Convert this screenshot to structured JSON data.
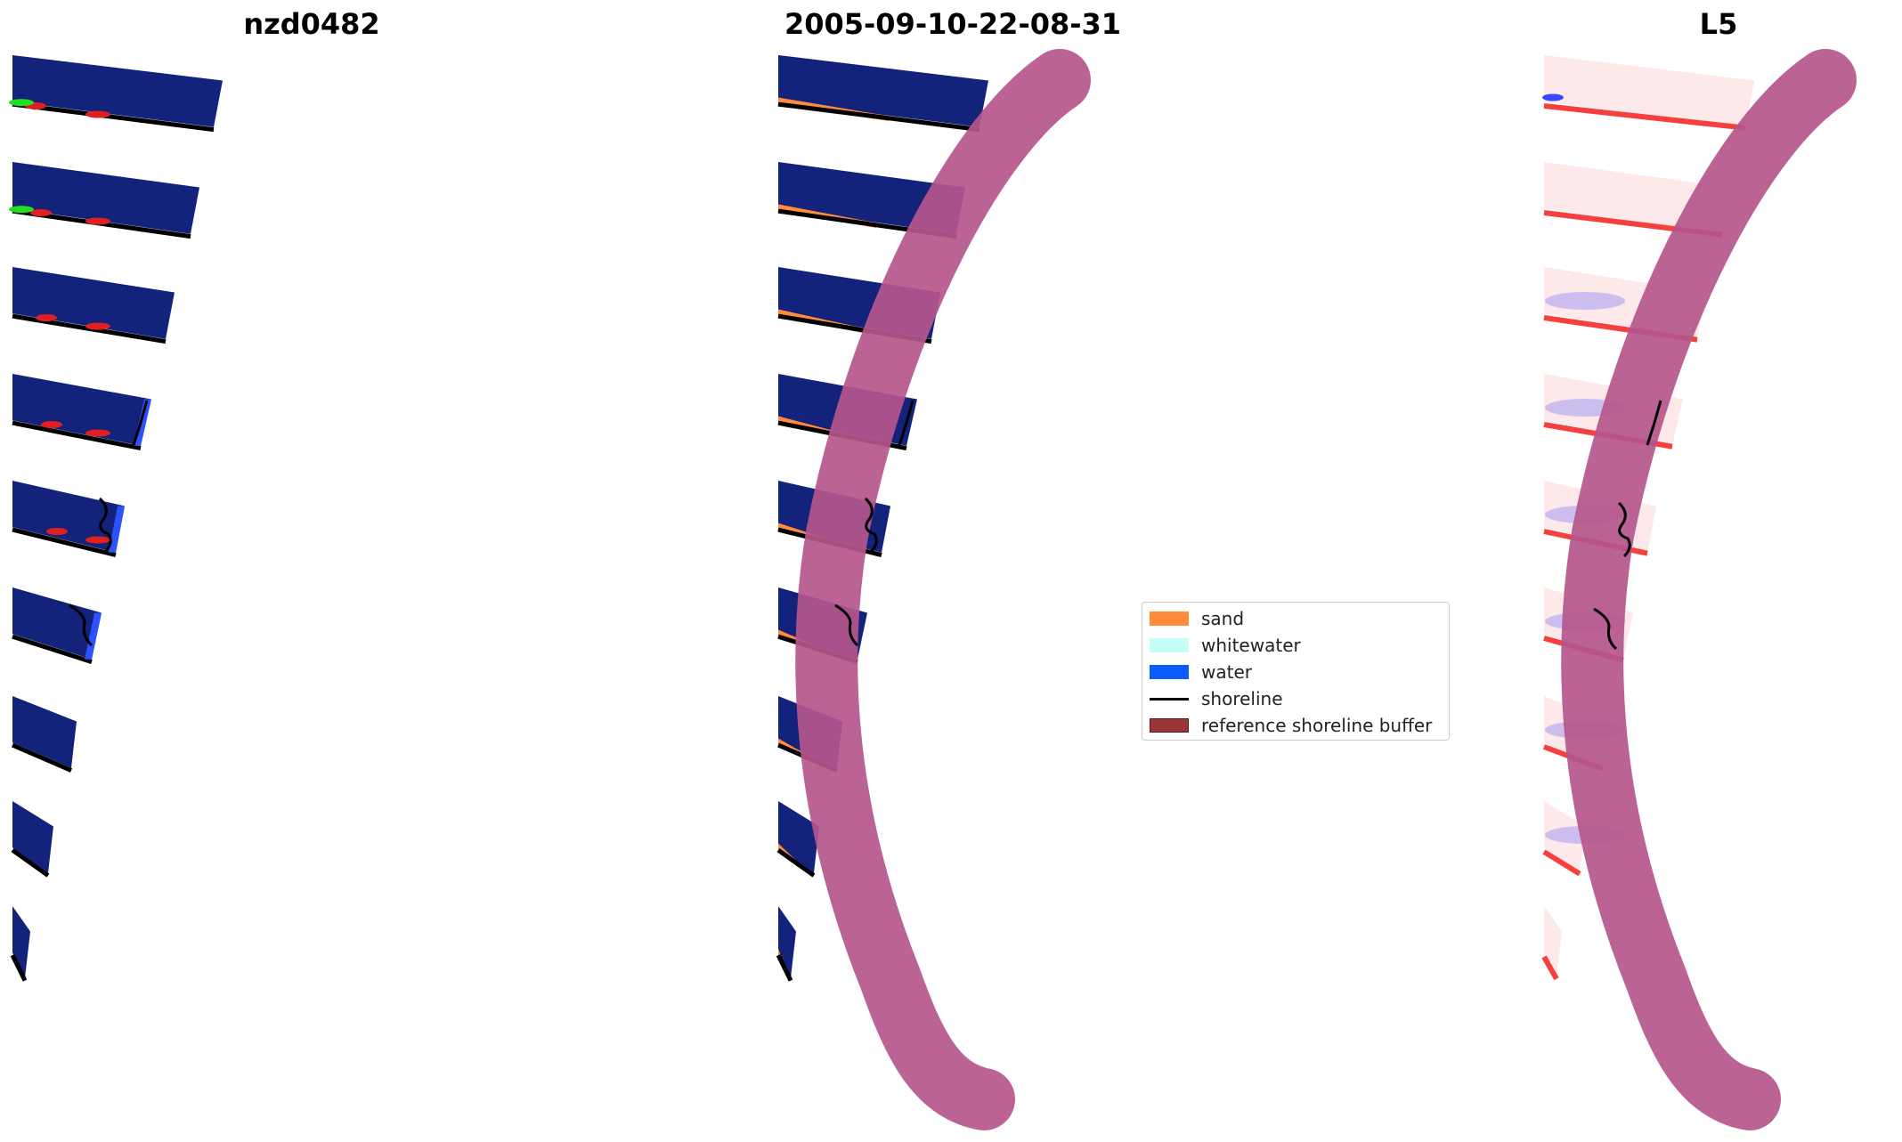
{
  "panels": [
    {
      "title": "nzd0482"
    },
    {
      "title": "2005-09-10-22-08-31"
    },
    {
      "title": "L5"
    }
  ],
  "legend": {
    "items": [
      {
        "label": "sand",
        "color": "#ff8c3a"
      },
      {
        "label": "whitewater",
        "color": "#c6fff8"
      },
      {
        "label": "water",
        "color": "#0a5cff"
      },
      {
        "label": "shoreline",
        "color": "#000000"
      },
      {
        "label": "reference shoreline buffer",
        "color": "#9a3636"
      }
    ]
  },
  "colors": {
    "imagery": "#13227a",
    "buffer": "#b5568c",
    "sand_overlay": "#ff8c3a",
    "class_water": "#2c52ff",
    "red_pixels": "#e02020",
    "green_pixels": "#20e020",
    "index_positive": "#f54040",
    "index_negative": "#3a45ff"
  }
}
